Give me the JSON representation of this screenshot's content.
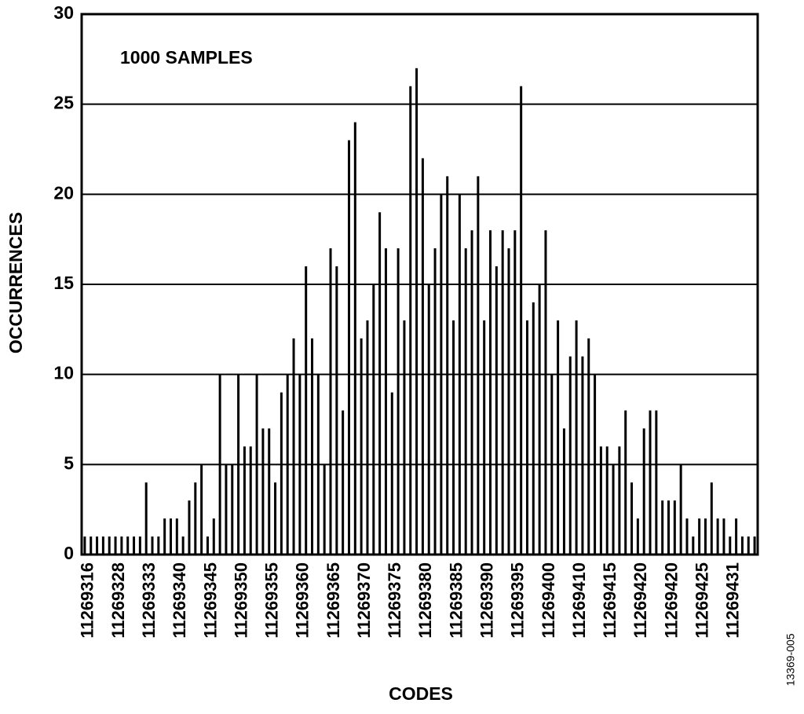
{
  "chart_data": {
    "type": "bar",
    "annotation": "1000 SAMPLES",
    "x_label": "CODES",
    "y_label": "OCCURRENCES",
    "figure_id": "13369-005",
    "color": "#000000",
    "grid": true,
    "ylim": [
      0,
      30
    ],
    "yticks": [
      0,
      5,
      10,
      15,
      20,
      25,
      30
    ],
    "categories": [
      "11269316",
      null,
      null,
      null,
      null,
      "11269328",
      null,
      null,
      null,
      null,
      "11269333",
      null,
      null,
      null,
      null,
      "11269340",
      null,
      null,
      null,
      null,
      "11269345",
      null,
      null,
      null,
      null,
      "11269350",
      null,
      null,
      null,
      null,
      "11269355",
      null,
      null,
      null,
      null,
      "11269360",
      null,
      null,
      null,
      null,
      "11269365",
      null,
      null,
      null,
      null,
      "11269370",
      null,
      null,
      null,
      null,
      "11269375",
      null,
      null,
      null,
      null,
      "11269380",
      null,
      null,
      null,
      null,
      "11269385",
      null,
      null,
      null,
      null,
      "11269390",
      null,
      null,
      null,
      null,
      "11269395",
      null,
      null,
      null,
      null,
      "11269400",
      null,
      null,
      null,
      null,
      "11269410",
      null,
      null,
      null,
      null,
      "11269415",
      null,
      null,
      null,
      null,
      "11269420",
      null,
      null,
      null,
      null,
      "11269420",
      null,
      null,
      null,
      null,
      "11269425",
      null,
      null,
      null,
      null,
      "11269431",
      null,
      null,
      null,
      null
    ],
    "values": [
      1,
      1,
      1,
      1,
      1,
      1,
      1,
      1,
      1,
      1,
      4,
      1,
      1,
      2,
      2,
      2,
      1,
      3,
      4,
      5,
      1,
      2,
      10,
      5,
      5,
      10,
      6,
      6,
      10,
      7,
      7,
      4,
      9,
      10,
      12,
      10,
      16,
      12,
      10,
      5,
      17,
      16,
      8,
      23,
      24,
      12,
      13,
      15,
      19,
      17,
      9,
      17,
      13,
      26,
      27,
      22,
      15,
      17,
      20,
      21,
      13,
      20,
      17,
      18,
      21,
      13,
      18,
      16,
      18,
      17,
      18,
      26,
      13,
      14,
      15,
      18,
      10,
      13,
      7,
      11,
      13,
      11,
      12,
      10,
      6,
      6,
      5,
      6,
      8,
      4,
      2,
      7,
      8,
      8,
      3,
      3,
      3,
      5,
      2,
      1,
      2,
      2,
      4,
      2,
      2,
      1,
      2,
      1,
      1,
      1
    ]
  }
}
